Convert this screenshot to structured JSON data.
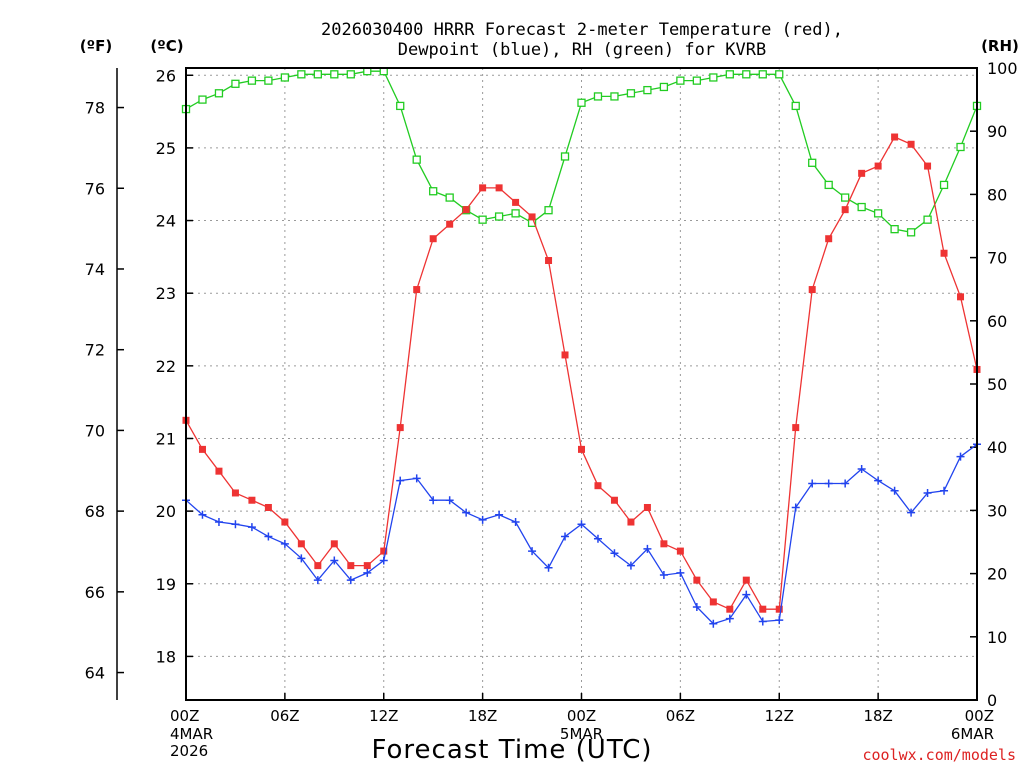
{
  "chart_data": {
    "type": "line",
    "title": [
      "2026030400 HRRR Forecast 2-meter Temperature (red),",
      "Dewpoint (blue), RH (green) for KVRB"
    ],
    "xlabel": "Forecast Time (UTC)",
    "credit": "coolwx.com/models",
    "colors": {
      "temperature": "#ee3333",
      "dewpoint": "#2244ee",
      "rh": "#22cc22",
      "credit": "#dd2222"
    },
    "x_range": [
      0,
      48
    ],
    "x_ticks": [
      {
        "hour": 0,
        "label": "00Z",
        "date": [
          "4MAR",
          "2026"
        ]
      },
      {
        "hour": 6,
        "label": "06Z",
        "date": []
      },
      {
        "hour": 12,
        "label": "12Z",
        "date": []
      },
      {
        "hour": 18,
        "label": "18Z",
        "date": []
      },
      {
        "hour": 24,
        "label": "00Z",
        "date": [
          "5MAR"
        ]
      },
      {
        "hour": 30,
        "label": "06Z",
        "date": []
      },
      {
        "hour": 36,
        "label": "12Z",
        "date": []
      },
      {
        "hour": 42,
        "label": "18Z",
        "date": []
      },
      {
        "hour": 48,
        "label": "00Z",
        "date": [
          "6MAR"
        ]
      }
    ],
    "axes": {
      "celsius": {
        "label": "(ºC)",
        "range": [
          17.4,
          26.1
        ],
        "ticks": [
          18,
          19,
          20,
          21,
          22,
          23,
          24,
          25,
          26
        ]
      },
      "fahrenheit": {
        "label": "(ºF)",
        "ticks": [
          64,
          66,
          68,
          70,
          72,
          74,
          76,
          78
        ]
      },
      "rh": {
        "label": "(RH)",
        "range": [
          0,
          100
        ],
        "ticks": [
          0,
          10,
          20,
          30,
          40,
          50,
          60,
          70,
          80,
          90,
          100
        ]
      }
    },
    "series": [
      {
        "name": "Temperature",
        "axis": "celsius",
        "marker": "filled-square",
        "values": [
          21.25,
          20.85,
          20.55,
          20.25,
          20.15,
          20.05,
          19.85,
          19.55,
          19.25,
          19.55,
          19.25,
          19.25,
          19.45,
          21.15,
          23.05,
          23.75,
          23.95,
          24.15,
          24.45,
          24.45,
          24.25,
          24.05,
          23.45,
          22.15,
          20.85,
          20.35,
          20.15,
          19.85,
          20.05,
          19.55,
          19.45,
          19.05,
          18.75,
          18.65,
          19.05,
          18.65,
          18.65,
          21.15,
          23.05,
          23.75,
          24.15,
          24.65,
          24.75,
          25.15,
          25.05,
          24.75,
          23.55,
          22.95,
          21.95
        ]
      },
      {
        "name": "Dewpoint",
        "axis": "celsius",
        "marker": "plus",
        "values": [
          20.15,
          19.95,
          19.85,
          19.82,
          19.78,
          19.65,
          19.55,
          19.35,
          19.05,
          19.32,
          19.05,
          19.15,
          19.32,
          20.42,
          20.45,
          20.15,
          20.15,
          19.98,
          19.88,
          19.95,
          19.85,
          19.45,
          19.22,
          19.65,
          19.82,
          19.62,
          19.42,
          19.25,
          19.48,
          19.12,
          19.15,
          18.68,
          18.45,
          18.52,
          18.85,
          18.48,
          18.5,
          20.05,
          20.38,
          20.38,
          20.38,
          20.58,
          20.42,
          20.28,
          19.98,
          20.25,
          20.28,
          20.75,
          20.92
        ]
      },
      {
        "name": "RH",
        "axis": "rh",
        "marker": "open-square",
        "values": [
          93.5,
          95.0,
          96.0,
          97.5,
          98.0,
          98.0,
          98.5,
          99.0,
          99.0,
          99.0,
          99.0,
          99.5,
          99.5,
          94.0,
          85.5,
          80.5,
          79.5,
          77.5,
          76.0,
          76.5,
          77.0,
          75.5,
          77.5,
          86.0,
          94.5,
          95.5,
          95.5,
          96.0,
          96.5,
          97.0,
          98.0,
          98.0,
          98.5,
          99.0,
          99.0,
          99.0,
          99.0,
          94.0,
          85.0,
          81.5,
          79.5,
          78.0,
          77.0,
          74.5,
          74.0,
          76.0,
          81.5,
          87.5,
          94.0
        ]
      }
    ]
  }
}
